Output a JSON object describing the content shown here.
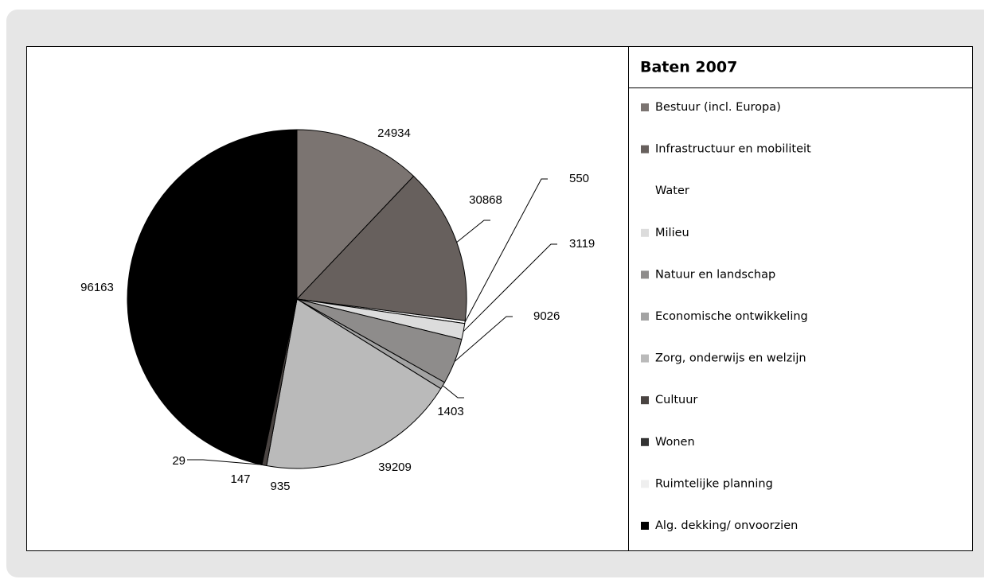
{
  "chart_data": {
    "type": "pie",
    "title": "Baten 2007",
    "categories": [
      "Bestuur (incl. Europa)",
      "Infrastructuur en mobiliteit",
      "Water",
      "Milieu",
      "Natuur en landschap",
      "Economische ontwikkeling",
      "Zorg, onderwijs en welzijn",
      "Cultuur",
      "Wonen",
      "Ruimtelijke planning",
      "Alg. dekking/ onvoorzien"
    ],
    "values": [
      24934,
      30868,
      550,
      3119,
      9026,
      1403,
      39209,
      935,
      147,
      29,
      96163
    ],
    "colors": [
      "#7b7471",
      "#67605d",
      "#ffffff",
      "#dcdcdc",
      "#8e8c8b",
      "#a3a3a3",
      "#bababa",
      "#4a4442",
      "#333333",
      "#efefef",
      "#000000"
    ]
  }
}
